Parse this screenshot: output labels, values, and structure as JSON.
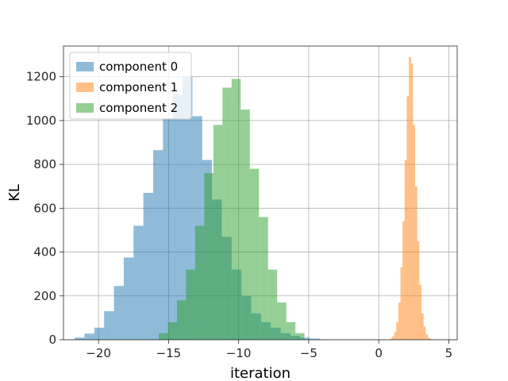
{
  "chart_data": {
    "type": "histogram",
    "title": "",
    "xlabel": "iteration",
    "ylabel": "KL",
    "xlim": [
      -22.5,
      5.6
    ],
    "ylim": [
      0,
      1340
    ],
    "x_ticks": [
      -20,
      -15,
      -10,
      -5,
      0,
      5
    ],
    "x_tick_labels": [
      "−20",
      "−15",
      "−10",
      "−5",
      "0",
      "5"
    ],
    "y_ticks": [
      0,
      200,
      400,
      600,
      800,
      1000,
      1200
    ],
    "y_tick_labels": [
      "0",
      "200",
      "400",
      "600",
      "800",
      "1000",
      "1200"
    ],
    "grid": true,
    "legend_position": "upper-left",
    "alpha": 0.5,
    "series": [
      {
        "name": "component 0",
        "color": "#1f77b4",
        "bin_edges": [
          -21.7,
          -21.0,
          -20.3,
          -19.6,
          -18.9,
          -18.2,
          -17.5,
          -16.8,
          -16.1,
          -15.4,
          -14.7,
          -14.0,
          -13.3,
          -12.6,
          -11.9,
          -11.2,
          -10.5,
          -9.8,
          -9.1,
          -8.4,
          -7.7,
          -7.0,
          -6.3,
          -5.6,
          -4.9,
          -4.2,
          -3.5
        ],
        "counts": [
          10,
          28,
          55,
          130,
          245,
          375,
          520,
          670,
          865,
          1010,
          1120,
          1200,
          1020,
          820,
          640,
          470,
          320,
          200,
          120,
          80,
          55,
          30,
          18,
          10,
          5,
          2
        ]
      },
      {
        "name": "component 1",
        "color": "#ff7f0e",
        "bin_edges": [
          0.8,
          0.95,
          1.1,
          1.25,
          1.4,
          1.55,
          1.7,
          1.85,
          2.0,
          2.15,
          2.3,
          2.45,
          2.6,
          2.75,
          2.9,
          3.05,
          3.2,
          3.35,
          3.5,
          3.65,
          3.8
        ],
        "counts": [
          5,
          15,
          35,
          80,
          170,
          330,
          540,
          820,
          1110,
          1290,
          1260,
          980,
          700,
          450,
          250,
          120,
          60,
          25,
          10,
          4
        ]
      },
      {
        "name": "component 2",
        "color": "#2ca02c",
        "bin_edges": [
          -15.7,
          -15.05,
          -14.4,
          -13.75,
          -13.1,
          -12.45,
          -11.8,
          -11.15,
          -10.5,
          -9.85,
          -9.2,
          -8.55,
          -7.9,
          -7.25,
          -6.6,
          -5.95,
          -5.3
        ],
        "counts": [
          30,
          80,
          180,
          320,
          520,
          760,
          980,
          1150,
          1190,
          1050,
          780,
          560,
          320,
          170,
          80,
          30
        ]
      }
    ]
  }
}
